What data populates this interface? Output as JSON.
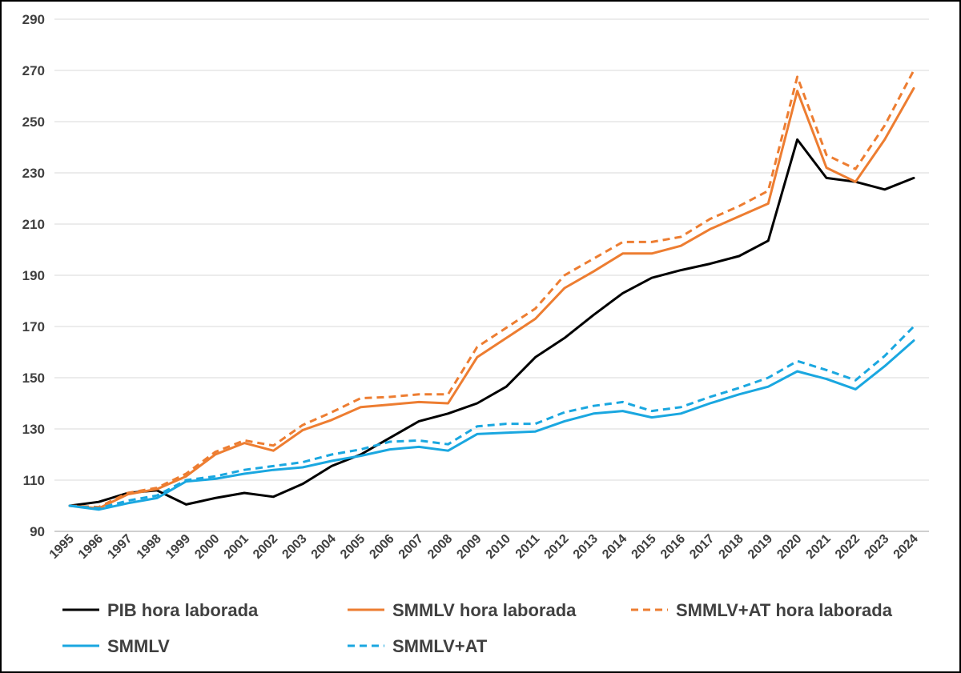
{
  "chart_data": {
    "type": "line",
    "title": "",
    "xlabel": "",
    "ylabel": "",
    "x": [
      "1995",
      "1996",
      "1997",
      "1998",
      "1999",
      "2000",
      "2001",
      "2002",
      "2003",
      "2004",
      "2005",
      "2006",
      "2007",
      "2008",
      "2009",
      "2010",
      "2011",
      "2012",
      "2013",
      "2014",
      "2015",
      "2016",
      "2017",
      "2018",
      "2019",
      "2020",
      "2021",
      "2022",
      "2023",
      "2024"
    ],
    "ylim": [
      90,
      290
    ],
    "yticks": [
      90,
      110,
      130,
      150,
      170,
      190,
      210,
      230,
      250,
      270,
      290
    ],
    "grid": true,
    "legend_position": "bottom",
    "series": [
      {
        "name": "PIB hora laborada",
        "color": "#000000",
        "dashed": false,
        "values": [
          100,
          101.5,
          105,
          106,
          100.5,
          103,
          105,
          103.5,
          108.5,
          115.5,
          120,
          126.5,
          133,
          136,
          140,
          146.5,
          158,
          165.5,
          174.5,
          183,
          189,
          192,
          194.5,
          197.5,
          203.5,
          243,
          228,
          226.5,
          223.5,
          228
        ]
      },
      {
        "name": "SMMLV hora laborada",
        "color": "#ED7D31",
        "dashed": false,
        "values": [
          100,
          99,
          104.5,
          106.5,
          111.5,
          120,
          124.5,
          121.5,
          129.5,
          133.5,
          138.5,
          139.5,
          140.5,
          140,
          158,
          165.5,
          173,
          185,
          191.5,
          198.5,
          198.5,
          201.5,
          208,
          213,
          218,
          262,
          232,
          226.5,
          243,
          263
        ]
      },
      {
        "name": "SMMLV+AT hora laborada",
        "color": "#ED7D31",
        "dashed": true,
        "values": [
          100,
          99.5,
          105,
          107,
          112.5,
          121,
          125.5,
          123.5,
          131.5,
          136.5,
          142,
          142.5,
          143.5,
          143.5,
          162,
          169.5,
          177,
          190,
          196.5,
          203,
          203,
          205,
          212,
          217,
          223,
          267.5,
          237,
          231.5,
          248.5,
          270
        ]
      },
      {
        "name": "SMMLV",
        "color": "#1AA7E0",
        "dashed": false,
        "values": [
          100,
          98.5,
          101,
          103,
          109.5,
          110.5,
          112.5,
          114,
          115,
          117.5,
          119.5,
          122,
          123,
          121.5,
          128,
          128.5,
          129,
          133,
          136,
          137,
          134.5,
          136,
          140,
          143.5,
          146.5,
          152.5,
          149.5,
          145.5,
          154.5,
          164.5
        ]
      },
      {
        "name": "SMMLV+AT",
        "color": "#1AA7E0",
        "dashed": true,
        "values": [
          100,
          99,
          102,
          104,
          110,
          111.5,
          114,
          115.5,
          117,
          120,
          122,
          125,
          125.5,
          124,
          131,
          132,
          132,
          136.5,
          139,
          140.5,
          137,
          138.5,
          142.5,
          146,
          150,
          156.5,
          153,
          149,
          158.5,
          170
        ]
      }
    ]
  }
}
